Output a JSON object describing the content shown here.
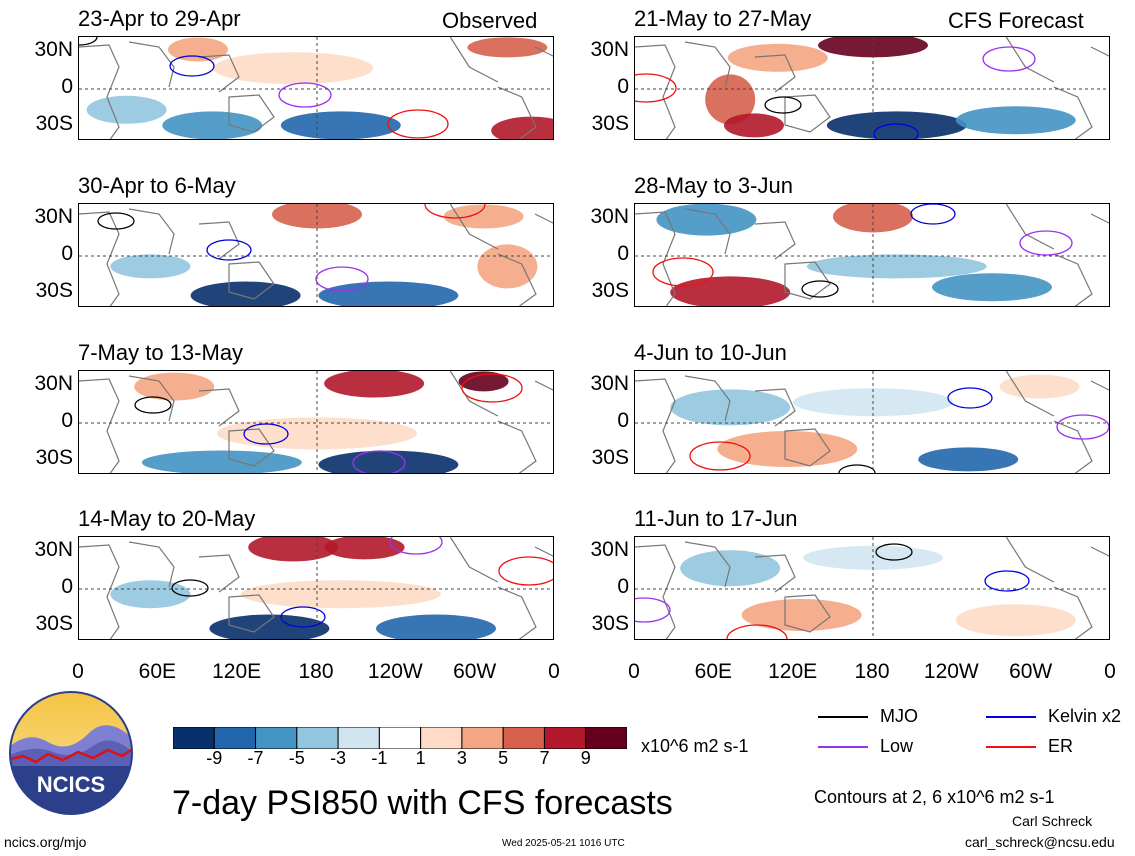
{
  "header": {
    "observed_label": "Observed",
    "forecast_label": "CFS Forecast"
  },
  "latitude_labels": [
    "30N",
    "0",
    "30S"
  ],
  "longitude_labels": [
    "0",
    "60E",
    "120E",
    "180",
    "120W",
    "60W",
    "0"
  ],
  "panels_left": [
    {
      "title": "23-Apr to 29-Apr"
    },
    {
      "title": "30-Apr to 6-May"
    },
    {
      "title": "7-May to 13-May"
    },
    {
      "title": "14-May to 20-May"
    }
  ],
  "panels_right": [
    {
      "title": "21-May to 27-May"
    },
    {
      "title": "28-May to 3-Jun"
    },
    {
      "title": "4-Jun to 10-Jun"
    },
    {
      "title": "11-Jun to 17-Jun"
    }
  ],
  "colorbar": {
    "ticks": [
      "-9",
      "-7",
      "-5",
      "-3",
      "-1",
      "1",
      "3",
      "5",
      "7",
      "9"
    ],
    "units": "x10^6 m2 s-1",
    "colors": [
      "#08306b",
      "#2166ac",
      "#4393c3",
      "#92c5de",
      "#d1e5f0",
      "#ffffff",
      "#fddbc7",
      "#f4a582",
      "#d6604d",
      "#b2182b",
      "#67001f"
    ]
  },
  "legend": [
    {
      "label": "MJO",
      "color": "#000000"
    },
    {
      "label": "Kelvin x2",
      "color": "#0000dd"
    },
    {
      "label": "Low",
      "color": "#9933ee"
    },
    {
      "label": "ER",
      "color": "#ee1111"
    }
  ],
  "contours_note": "Contours at 2, 6 x10^6 m2 s-1",
  "main_title": "7-day PSI850 with CFS forecasts",
  "logo_text": "NCICS",
  "footer": {
    "url": "ncics.org/mjo",
    "timestamp": "Wed 2025-05-21 1016 UTC",
    "author": "Carl Schreck",
    "email": "carl_schreck@ncsu.edu"
  }
}
